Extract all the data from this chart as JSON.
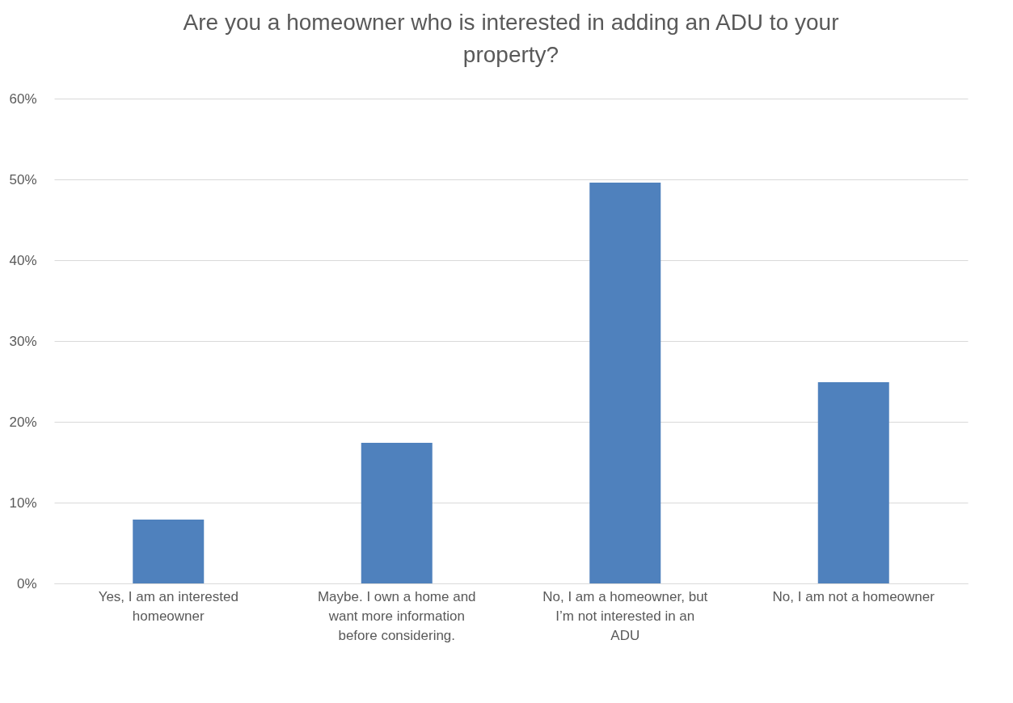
{
  "chart_data": {
    "type": "bar",
    "title": "Are you a homeowner who is interested in adding an ADU to your property?",
    "categories": [
      "Yes, I am an interested homeowner",
      "Maybe. I own a home and want more information before considering.",
      "No, I am a homeowner, but I’m not interested in an ADU",
      "No, I am not a homeowner"
    ],
    "values": [
      7.9,
      17.4,
      49.6,
      24.9
    ],
    "color": "#4f81bd",
    "ylim": [
      0,
      60
    ],
    "yticks": [
      {
        "value": 0,
        "label": "0%"
      },
      {
        "value": 10,
        "label": "10%"
      },
      {
        "value": 20,
        "label": "20%"
      },
      {
        "value": 30,
        "label": "30%"
      },
      {
        "value": 40,
        "label": "40%"
      },
      {
        "value": 50,
        "label": "50%"
      },
      {
        "value": 60,
        "label": "60%"
      }
    ],
    "grid": "y"
  }
}
